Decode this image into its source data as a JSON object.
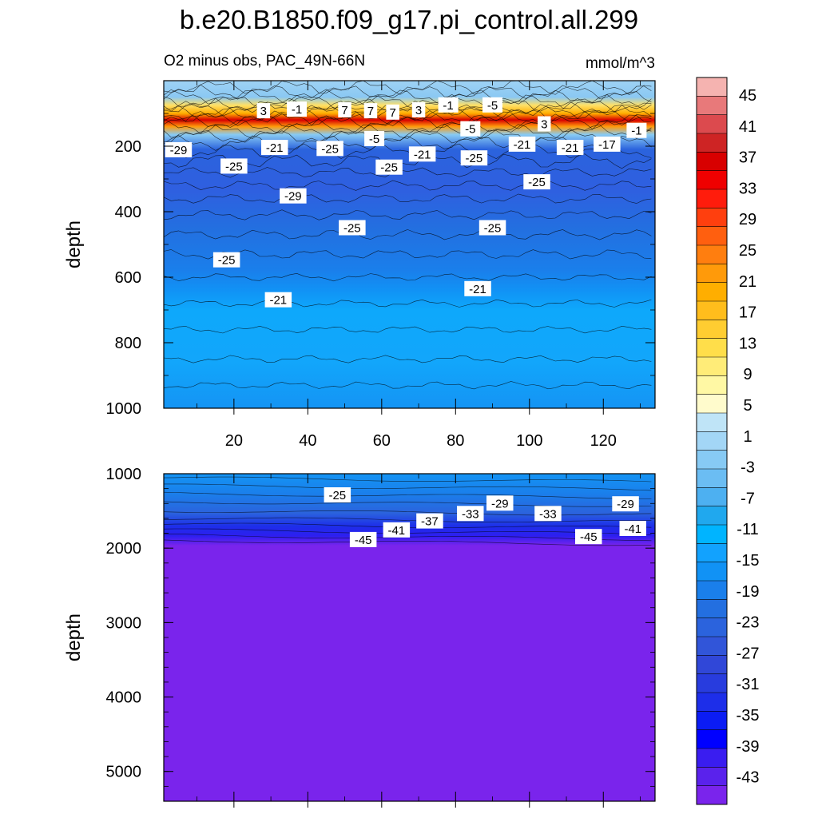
{
  "figure": {
    "title": "b.e20.B1850.f09_g17.pi_control.all.299",
    "subtitle_left": "O2 minus obs, PAC_49N-66N",
    "subtitle_right": "mmol/m^3"
  },
  "chart_data": [
    {
      "type": "heatmap",
      "panel": "upper",
      "ylabel": "depth",
      "xlabel": "",
      "x_ticks": [
        20,
        40,
        60,
        80,
        100,
        120
      ],
      "y_ticks": [
        200,
        400,
        600,
        800,
        1000
      ],
      "xlim": [
        1,
        134
      ],
      "ylim": [
        1000,
        0
      ],
      "y_reversed": true,
      "contour_labels": [
        {
          "text": "3",
          "x": 28,
          "y": 93
        },
        {
          "text": "-1",
          "x": 37,
          "y": 88
        },
        {
          "text": "7",
          "x": 50,
          "y": 90
        },
        {
          "text": "7",
          "x": 57,
          "y": 93
        },
        {
          "text": "7",
          "x": 63,
          "y": 97
        },
        {
          "text": "3",
          "x": 70,
          "y": 90
        },
        {
          "text": "-1",
          "x": 78,
          "y": 75
        },
        {
          "text": "-5",
          "x": 90,
          "y": 75
        },
        {
          "text": "3",
          "x": 104,
          "y": 133
        },
        {
          "text": "-1",
          "x": 129,
          "y": 153
        },
        {
          "text": "-5",
          "x": 58,
          "y": 178
        },
        {
          "text": "-5",
          "x": 84,
          "y": 148
        },
        {
          "text": "-21",
          "x": 98,
          "y": 195
        },
        {
          "text": "-21",
          "x": 111,
          "y": 205
        },
        {
          "text": "-17",
          "x": 121,
          "y": 195
        },
        {
          "text": "-29",
          "x": 5,
          "y": 212
        },
        {
          "text": "-21",
          "x": 31,
          "y": 205
        },
        {
          "text": "-25",
          "x": 46,
          "y": 208
        },
        {
          "text": "-25",
          "x": 20,
          "y": 262
        },
        {
          "text": "-25",
          "x": 62,
          "y": 265
        },
        {
          "text": "-21",
          "x": 71,
          "y": 225
        },
        {
          "text": "-25",
          "x": 85,
          "y": 237
        },
        {
          "text": "-25",
          "x": 102,
          "y": 310
        },
        {
          "text": "-29",
          "x": 36,
          "y": 353
        },
        {
          "text": "-25",
          "x": 52,
          "y": 450
        },
        {
          "text": "-25",
          "x": 90,
          "y": 450
        },
        {
          "text": "-25",
          "x": 18,
          "y": 548
        },
        {
          "text": "-21",
          "x": 86,
          "y": 636
        },
        {
          "text": "-21",
          "x": 32,
          "y": 670
        }
      ]
    },
    {
      "type": "heatmap",
      "panel": "lower",
      "ylabel": "depth",
      "xlabel": "",
      "x_ticks": [],
      "y_ticks": [
        1000,
        2000,
        3000,
        4000,
        5000
      ],
      "ylim": [
        5400,
        1000
      ],
      "y_reversed": true,
      "contour_labels": [
        {
          "text": "-25",
          "x": 48,
          "y": 1290
        },
        {
          "text": "-29",
          "x": 92,
          "y": 1400
        },
        {
          "text": "-33",
          "x": 84,
          "y": 1540
        },
        {
          "text": "-33",
          "x": 105,
          "y": 1540
        },
        {
          "text": "-29",
          "x": 126,
          "y": 1410
        },
        {
          "text": "-37",
          "x": 73,
          "y": 1640
        },
        {
          "text": "-41",
          "x": 64,
          "y": 1760
        },
        {
          "text": "-41",
          "x": 128,
          "y": 1740
        },
        {
          "text": "-45",
          "x": 55,
          "y": 1890
        },
        {
          "text": "-45",
          "x": 116,
          "y": 1850
        }
      ]
    }
  ],
  "colorbar": {
    "labels": [
      "45",
      "41",
      "37",
      "33",
      "29",
      "25",
      "21",
      "17",
      "13",
      "9",
      "5",
      "1",
      "-3",
      "-7",
      "-11",
      "-15",
      "-19",
      "-23",
      "-27",
      "-31",
      "-35",
      "-39",
      "-43"
    ],
    "colors": [
      "#f5b3b0",
      "#e8797a",
      "#dc4a4e",
      "#ce2424",
      "#d80000",
      "#ef0000",
      "#ff1c0c",
      "#ff3f0e",
      "#ff5f0f",
      "#ff7e0f",
      "#ff9a0a",
      "#ffae00",
      "#ffbd1c",
      "#ffcd31",
      "#ffde4a",
      "#ffec78",
      "#fff8a4",
      "#fffbcc",
      "#bfe4f7",
      "#a3d6f6",
      "#87caf4",
      "#6bbdf3",
      "#4db0f1",
      "#20a8ee",
      "#00b4ff",
      "#12a2fe",
      "#1192f5",
      "#1a7feb",
      "#236fe0",
      "#2b63dd",
      "#3155d9",
      "#3047d8",
      "#283cde",
      "#1d2ee9",
      "#0b1cf4",
      "#0000ff",
      "#3a1df0",
      "#5a22ec",
      "#7a24ec"
    ]
  }
}
